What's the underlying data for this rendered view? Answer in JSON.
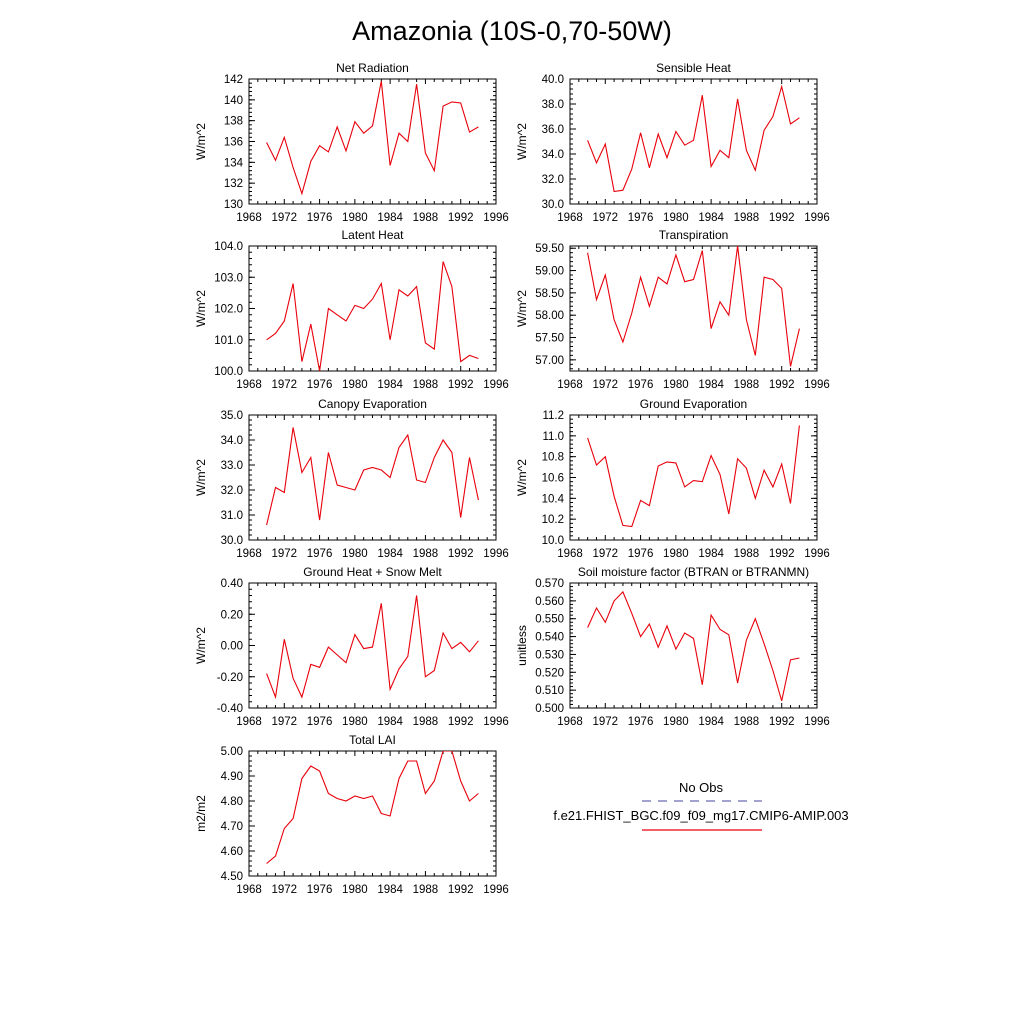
{
  "figure": {
    "title": "Amazonia (10S-0,70-50W)",
    "series_color": "#e8000b",
    "obs_line_color": "#6b6bb5"
  },
  "legend": {
    "obs_label": "No Obs",
    "model_label": "f.e21.FHIST_BGC.f09_f09_mg17.CMIP6-AMIP.003"
  },
  "chart_data": [
    {
      "type": "line",
      "title": "Net Radiation",
      "ylabel": "W/m^2",
      "xlim": [
        1968,
        1996
      ],
      "xticks": [
        1968,
        1972,
        1976,
        1980,
        1984,
        1988,
        1992,
        1996
      ],
      "ylim": [
        130,
        142
      ],
      "yticks": [
        "130",
        "132",
        "134",
        "136",
        "138",
        "140",
        "142"
      ],
      "x": [
        1970,
        1971,
        1972,
        1973,
        1974,
        1975,
        1976,
        1977,
        1978,
        1979,
        1980,
        1981,
        1982,
        1983,
        1984,
        1985,
        1986,
        1987,
        1988,
        1989,
        1990,
        1991,
        1992,
        1993,
        1994
      ],
      "values": [
        135.9,
        134.2,
        136.4,
        133.5,
        131.0,
        134.1,
        135.6,
        135.0,
        137.4,
        135.1,
        137.9,
        136.8,
        137.5,
        141.8,
        133.7,
        136.8,
        136.0,
        141.5,
        134.9,
        133.2,
        139.4,
        139.8,
        139.7,
        136.9,
        137.4
      ]
    },
    {
      "type": "line",
      "title": "Sensible Heat",
      "ylabel": "W/m^2",
      "xlim": [
        1968,
        1996
      ],
      "xticks": [
        1968,
        1972,
        1976,
        1980,
        1984,
        1988,
        1992,
        1996
      ],
      "ylim": [
        30.0,
        40.0
      ],
      "yticks": [
        "30.0",
        "32.0",
        "34.0",
        "36.0",
        "38.0",
        "40.0"
      ],
      "x": [
        1970,
        1971,
        1972,
        1973,
        1974,
        1975,
        1976,
        1977,
        1978,
        1979,
        1980,
        1981,
        1982,
        1983,
        1984,
        1985,
        1986,
        1987,
        1988,
        1989,
        1990,
        1991,
        1992,
        1993,
        1994
      ],
      "values": [
        35.1,
        33.3,
        34.8,
        31.0,
        31.1,
        32.8,
        35.7,
        32.9,
        35.6,
        33.7,
        35.8,
        34.7,
        35.1,
        38.7,
        33.0,
        34.3,
        33.7,
        38.4,
        34.3,
        32.7,
        35.9,
        37.0,
        39.4,
        36.4,
        36.9
      ]
    },
    {
      "type": "line",
      "title": "Latent Heat",
      "ylabel": "W/m^2",
      "xlim": [
        1968,
        1996
      ],
      "xticks": [
        1968,
        1972,
        1976,
        1980,
        1984,
        1988,
        1992,
        1996
      ],
      "ylim": [
        100.0,
        104.0
      ],
      "yticks": [
        "100.0",
        "101.0",
        "102.0",
        "103.0",
        "104.0"
      ],
      "x": [
        1970,
        1971,
        1972,
        1973,
        1974,
        1975,
        1976,
        1977,
        1978,
        1979,
        1980,
        1981,
        1982,
        1983,
        1984,
        1985,
        1986,
        1987,
        1988,
        1989,
        1990,
        1991,
        1992,
        1993,
        1994
      ],
      "values": [
        101.0,
        101.2,
        101.6,
        102.8,
        100.3,
        101.5,
        100.0,
        102.0,
        101.8,
        101.6,
        102.1,
        102.0,
        102.3,
        102.8,
        101.0,
        102.6,
        102.4,
        102.7,
        100.9,
        100.7,
        103.5,
        102.7,
        100.3,
        100.5,
        100.4
      ]
    },
    {
      "type": "line",
      "title": "Transpiration",
      "ylabel": "W/m^2",
      "xlim": [
        1968,
        1996
      ],
      "xticks": [
        1968,
        1972,
        1976,
        1980,
        1984,
        1988,
        1992,
        1996
      ],
      "ylim": [
        56.75,
        59.55
      ],
      "yticks": [
        "57.00",
        "57.50",
        "58.00",
        "58.50",
        "59.00",
        "59.50"
      ],
      "x": [
        1970,
        1971,
        1972,
        1973,
        1974,
        1975,
        1976,
        1977,
        1978,
        1979,
        1980,
        1981,
        1982,
        1983,
        1984,
        1985,
        1986,
        1987,
        1988,
        1989,
        1990,
        1991,
        1992,
        1993,
        1994
      ],
      "values": [
        59.4,
        58.35,
        58.9,
        57.9,
        57.4,
        58.05,
        58.85,
        58.2,
        58.85,
        58.7,
        59.35,
        58.75,
        58.8,
        59.45,
        57.7,
        58.3,
        58.0,
        59.55,
        57.9,
        57.1,
        58.85,
        58.8,
        58.6,
        56.85,
        57.7
      ]
    },
    {
      "type": "line",
      "title": "Canopy Evaporation",
      "ylabel": "W/m^2",
      "xlim": [
        1968,
        1996
      ],
      "xticks": [
        1968,
        1972,
        1976,
        1980,
        1984,
        1988,
        1992,
        1996
      ],
      "ylim": [
        30.0,
        35.0
      ],
      "yticks": [
        "30.0",
        "31.0",
        "32.0",
        "33.0",
        "34.0",
        "35.0"
      ],
      "x": [
        1970,
        1971,
        1972,
        1973,
        1974,
        1975,
        1976,
        1977,
        1978,
        1979,
        1980,
        1981,
        1982,
        1983,
        1984,
        1985,
        1986,
        1987,
        1988,
        1989,
        1990,
        1991,
        1992,
        1993,
        1994
      ],
      "values": [
        30.6,
        32.1,
        31.9,
        34.5,
        32.7,
        33.3,
        30.8,
        33.5,
        32.2,
        32.1,
        32.0,
        32.8,
        32.9,
        32.8,
        32.5,
        33.7,
        34.2,
        32.4,
        32.3,
        33.3,
        34.0,
        33.5,
        30.9,
        33.3,
        31.6
      ]
    },
    {
      "type": "line",
      "title": "Ground Evaporation",
      "ylabel": "W/m^2",
      "xlim": [
        1968,
        1996
      ],
      "xticks": [
        1968,
        1972,
        1976,
        1980,
        1984,
        1988,
        1992,
        1996
      ],
      "ylim": [
        10.0,
        11.2
      ],
      "yticks": [
        "10.0",
        "10.2",
        "10.4",
        "10.6",
        "10.8",
        "11.0",
        "11.2"
      ],
      "x": [
        1970,
        1971,
        1972,
        1973,
        1974,
        1975,
        1976,
        1977,
        1978,
        1979,
        1980,
        1981,
        1982,
        1983,
        1984,
        1985,
        1986,
        1987,
        1988,
        1989,
        1990,
        1991,
        1992,
        1993,
        1994
      ],
      "values": [
        10.98,
        10.72,
        10.8,
        10.42,
        10.14,
        10.13,
        10.38,
        10.33,
        10.71,
        10.75,
        10.74,
        10.51,
        10.57,
        10.56,
        10.81,
        10.63,
        10.25,
        10.78,
        10.69,
        10.4,
        10.67,
        10.51,
        10.73,
        10.35,
        11.1
      ]
    },
    {
      "type": "line",
      "title": "Ground Heat + Snow Melt",
      "ylabel": "W/m^2",
      "xlim": [
        1968,
        1996
      ],
      "xticks": [
        1968,
        1972,
        1976,
        1980,
        1984,
        1988,
        1992,
        1996
      ],
      "ylim": [
        -0.4,
        0.4
      ],
      "yticks": [
        "-0.40",
        "-0.20",
        "0.00",
        "0.20",
        "0.40"
      ],
      "x": [
        1970,
        1971,
        1972,
        1973,
        1974,
        1975,
        1976,
        1977,
        1978,
        1979,
        1980,
        1981,
        1982,
        1983,
        1984,
        1985,
        1986,
        1987,
        1988,
        1989,
        1990,
        1991,
        1992,
        1993,
        1994
      ],
      "values": [
        -0.18,
        -0.33,
        0.04,
        -0.21,
        -0.33,
        -0.12,
        -0.14,
        -0.01,
        -0.06,
        -0.11,
        0.07,
        -0.02,
        -0.01,
        0.27,
        -0.28,
        -0.15,
        -0.07,
        0.32,
        -0.2,
        -0.16,
        0.08,
        -0.02,
        0.02,
        -0.04,
        0.03
      ]
    },
    {
      "type": "line",
      "title": "Soil moisture factor (BTRAN or BTRANMN)",
      "ylabel": "unitless",
      "xlim": [
        1968,
        1996
      ],
      "xticks": [
        1968,
        1972,
        1976,
        1980,
        1984,
        1988,
        1992,
        1996
      ],
      "ylim": [
        0.5,
        0.57
      ],
      "yticks": [
        "0.500",
        "0.510",
        "0.520",
        "0.530",
        "0.540",
        "0.550",
        "0.560",
        "0.570"
      ],
      "x": [
        1970,
        1971,
        1972,
        1973,
        1974,
        1975,
        1976,
        1977,
        1978,
        1979,
        1980,
        1981,
        1982,
        1983,
        1984,
        1985,
        1986,
        1987,
        1988,
        1989,
        1990,
        1991,
        1992,
        1993,
        1994
      ],
      "values": [
        0.545,
        0.556,
        0.548,
        0.56,
        0.565,
        0.553,
        0.54,
        0.547,
        0.534,
        0.546,
        0.533,
        0.542,
        0.539,
        0.513,
        0.552,
        0.544,
        0.541,
        0.514,
        0.538,
        0.55,
        0.536,
        0.521,
        0.504,
        0.527,
        0.528
      ]
    },
    {
      "type": "line",
      "title": "Total LAI",
      "ylabel": "m2/m2",
      "xlim": [
        1968,
        1996
      ],
      "xticks": [
        1968,
        1972,
        1976,
        1980,
        1984,
        1988,
        1992,
        1996
      ],
      "ylim": [
        4.5,
        5.0
      ],
      "yticks": [
        "4.50",
        "4.60",
        "4.70",
        "4.80",
        "4.90",
        "5.00"
      ],
      "x": [
        1970,
        1971,
        1972,
        1973,
        1974,
        1975,
        1976,
        1977,
        1978,
        1979,
        1980,
        1981,
        1982,
        1983,
        1984,
        1985,
        1986,
        1987,
        1988,
        1989,
        1990,
        1991,
        1992,
        1993,
        1994
      ],
      "values": [
        4.55,
        4.58,
        4.69,
        4.73,
        4.89,
        4.94,
        4.92,
        4.83,
        4.81,
        4.8,
        4.82,
        4.81,
        4.82,
        4.75,
        4.74,
        4.89,
        4.96,
        4.96,
        4.83,
        4.88,
        5.0,
        5.0,
        4.88,
        4.8,
        4.83
      ]
    }
  ]
}
